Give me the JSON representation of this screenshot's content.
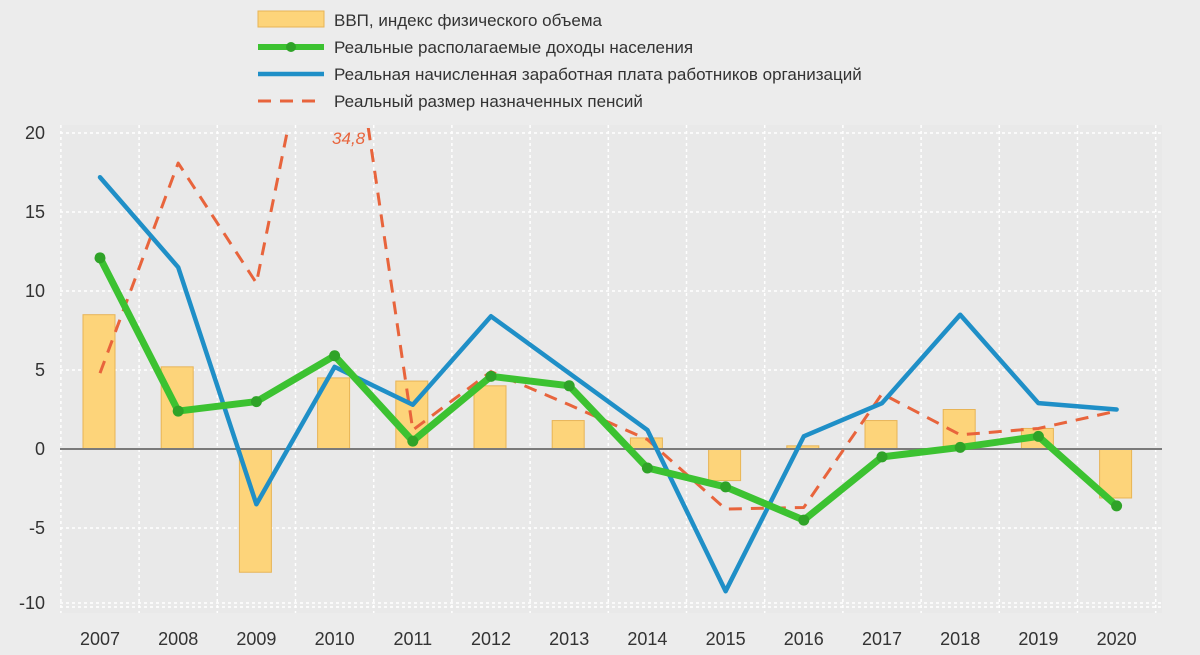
{
  "chart_data": {
    "type": "bar",
    "title": "",
    "xlabel": "",
    "ylabel": "",
    "categories": [
      "2007",
      "2008",
      "2009",
      "2010",
      "2011",
      "2012",
      "2013",
      "2014",
      "2015",
      "2016",
      "2017",
      "2018",
      "2019",
      "2020"
    ],
    "ylim": [
      -10,
      20
    ],
    "yticks": [
      20,
      15,
      10,
      5,
      0,
      -5,
      -10
    ],
    "grid": true,
    "legend_position": "top",
    "series": [
      {
        "name": "ВВП, индекс физического объема",
        "kind": "bar",
        "color": "#fdd47a",
        "values": [
          8.5,
          5.2,
          -7.8,
          4.5,
          4.3,
          4.0,
          1.8,
          0.7,
          -2.0,
          0.2,
          1.8,
          2.5,
          1.3,
          -3.1
        ]
      },
      {
        "name": "Реальные располагаемые доходы населения",
        "kind": "line-markers",
        "color": "#3cb832",
        "values": [
          12.1,
          2.4,
          3.0,
          5.9,
          0.5,
          4.6,
          4.0,
          -1.2,
          -2.4,
          -4.5,
          -0.5,
          0.1,
          0.8,
          -3.6
        ]
      },
      {
        "name": "Реальная начисленная заработная плата работников организаций",
        "kind": "line",
        "color": "#1f8fc7",
        "values": [
          17.2,
          11.5,
          -3.5,
          5.2,
          2.8,
          8.4,
          4.8,
          1.2,
          -9.0,
          0.8,
          2.9,
          8.5,
          2.9,
          2.5
        ]
      },
      {
        "name": "Реальный размер назначенных пенсий",
        "kind": "dashed-line",
        "color": "#e8643c",
        "values": [
          4.8,
          18.1,
          10.5,
          34.8,
          1.2,
          4.9,
          2.8,
          0.6,
          -3.8,
          -3.7,
          3.5,
          0.9,
          1.3,
          2.4
        ]
      }
    ],
    "annotations": [
      {
        "text": "34,8",
        "series": 3,
        "category": "2010"
      }
    ]
  }
}
